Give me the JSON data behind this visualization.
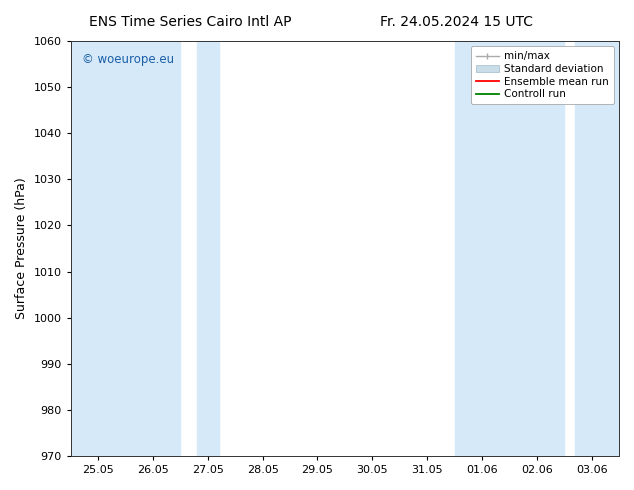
{
  "title_left": "ENS Time Series Cairo Intl AP",
  "title_right": "Fr. 24.05.2024 15 UTC",
  "ylabel": "Surface Pressure (hPa)",
  "ylim": [
    970,
    1060
  ],
  "yticks": [
    970,
    980,
    990,
    1000,
    1010,
    1020,
    1030,
    1040,
    1050,
    1060
  ],
  "x_labels": [
    "25.05",
    "26.05",
    "27.05",
    "28.05",
    "29.05",
    "30.05",
    "31.05",
    "01.06",
    "02.06",
    "03.06"
  ],
  "band_color": "#d6e9f8",
  "watermark": "© woeurope.eu",
  "watermark_color": "#1a5fa8",
  "background_color": "#ffffff",
  "spine_color": "#000000",
  "tick_color": "#000000",
  "font_size_title": 10,
  "font_size_axis": 9,
  "font_size_tick": 8,
  "font_size_legend": 7.5,
  "font_size_watermark": 8.5
}
